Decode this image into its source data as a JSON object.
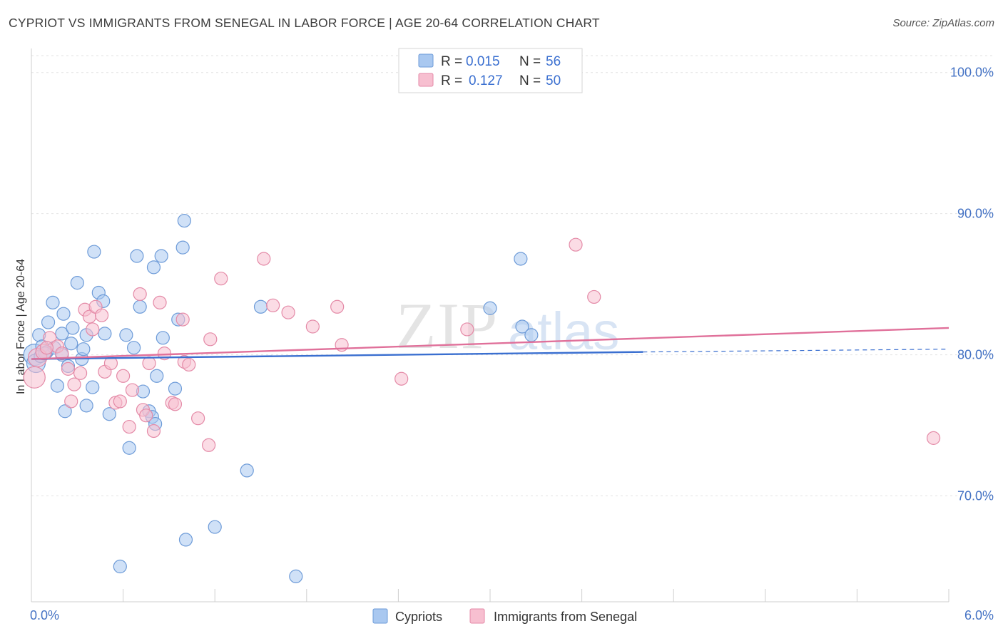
{
  "header": {
    "title": "CYPRIOT VS IMMIGRANTS FROM SENEGAL IN LABOR FORCE | AGE 20-64 CORRELATION CHART",
    "source": "Source: ZipAtlas.com"
  },
  "watermark": {
    "zip": "ZIP",
    "atlas": "atlas"
  },
  "legend": {
    "rows": [
      {
        "r_label": "R =",
        "r_value": "0.015",
        "n_label": "N =",
        "n_value": "56",
        "color": "#a9c8f0",
        "stroke": "#6d9bd8"
      },
      {
        "r_label": "R =",
        "r_value": "0.127",
        "n_label": "N =",
        "n_value": "50",
        "color": "#f7bfd0",
        "stroke": "#e48aa7"
      }
    ]
  },
  "bottom_legend": [
    {
      "label": "Cypriots",
      "color": "#a9c8f0",
      "stroke": "#6d9bd8"
    },
    {
      "label": "Immigrants from Senegal",
      "color": "#f7bfd0",
      "stroke": "#e48aa7"
    }
  ],
  "chart_data": {
    "type": "scatter",
    "ylabel": "In Labor Force | Age 20-64",
    "xlim": [
      0,
      6.0
    ],
    "ylim": [
      62.5,
      101.5
    ],
    "x_tick_labels": [
      {
        "value": 0,
        "label": "0.0%"
      },
      {
        "value": 6.0,
        "label": "6.0%"
      }
    ],
    "y_tick_labels": [
      {
        "value": 100,
        "label": "100.0%"
      },
      {
        "value": 90,
        "label": "90.0%"
      },
      {
        "value": 80,
        "label": "80.0%"
      },
      {
        "value": 70,
        "label": "70.0%"
      }
    ],
    "grid": true,
    "series": [
      {
        "name": "Cypriots",
        "color": "#a9c8f0",
        "stroke": "#6d9bd8",
        "trend": {
          "x": [
            0,
            4.0
          ],
          "y": [
            79.7,
            80.2
          ],
          "dashed_to": 6.0,
          "dashed_y": 80.4,
          "color": "#3a6fd0"
        },
        "points": [
          [
            0.02,
            80.0,
            14
          ],
          [
            0.03,
            79.4,
            12
          ],
          [
            0.05,
            81.4,
            8
          ],
          [
            0.07,
            80.6,
            8
          ],
          [
            0.1,
            80.2,
            8
          ],
          [
            0.11,
            82.3,
            8
          ],
          [
            0.14,
            83.7,
            8
          ],
          [
            0.15,
            80.5,
            8
          ],
          [
            0.17,
            77.8,
            8
          ],
          [
            0.2,
            80.0,
            8
          ],
          [
            0.2,
            81.5,
            8
          ],
          [
            0.21,
            82.9,
            8
          ],
          [
            0.22,
            76.0,
            8
          ],
          [
            0.24,
            79.2,
            8
          ],
          [
            0.26,
            80.8,
            8
          ],
          [
            0.27,
            81.9,
            8
          ],
          [
            0.3,
            85.1,
            8
          ],
          [
            0.33,
            79.7,
            8
          ],
          [
            0.34,
            80.4,
            8
          ],
          [
            0.36,
            76.4,
            8
          ],
          [
            0.36,
            81.4,
            8
          ],
          [
            0.4,
            77.7,
            8
          ],
          [
            0.41,
            87.3,
            8
          ],
          [
            0.44,
            84.4,
            8
          ],
          [
            0.47,
            83.8,
            8
          ],
          [
            0.48,
            81.5,
            8
          ],
          [
            0.51,
            75.8,
            8
          ],
          [
            0.58,
            65.0,
            8
          ],
          [
            0.62,
            81.4,
            8
          ],
          [
            0.64,
            73.4,
            8
          ],
          [
            0.67,
            80.5,
            8
          ],
          [
            0.69,
            87.0,
            8
          ],
          [
            0.71,
            83.4,
            8
          ],
          [
            0.73,
            77.4,
            8
          ],
          [
            0.77,
            76.0,
            8
          ],
          [
            0.79,
            75.6,
            8
          ],
          [
            0.8,
            86.2,
            8
          ],
          [
            0.81,
            75.1,
            8
          ],
          [
            0.82,
            78.5,
            8
          ],
          [
            0.85,
            87.0,
            8
          ],
          [
            0.86,
            81.2,
            8
          ],
          [
            0.94,
            77.6,
            8
          ],
          [
            0.96,
            82.5,
            8
          ],
          [
            0.99,
            87.6,
            8
          ],
          [
            1.0,
            89.5,
            8
          ],
          [
            1.01,
            66.9,
            8
          ],
          [
            1.2,
            67.8,
            8
          ],
          [
            1.41,
            71.8,
            8
          ],
          [
            1.5,
            83.4,
            8
          ],
          [
            1.73,
            64.3,
            8
          ],
          [
            3.0,
            83.3,
            8
          ],
          [
            3.2,
            86.8,
            8
          ],
          [
            3.21,
            82.0,
            8
          ],
          [
            3.27,
            81.4,
            8
          ],
          [
            0.06,
            79.9,
            8
          ],
          [
            0.09,
            80.1,
            8
          ]
        ]
      },
      {
        "name": "Immigrants from Senegal",
        "color": "#f7bfd0",
        "stroke": "#e48aa7",
        "trend": {
          "x": [
            0,
            6.0
          ],
          "y": [
            79.7,
            81.9
          ],
          "color": "#e0709a"
        },
        "points": [
          [
            0.02,
            78.4,
            14
          ],
          [
            0.04,
            79.8,
            12
          ],
          [
            0.08,
            80.2,
            10
          ],
          [
            0.12,
            81.2,
            8
          ],
          [
            0.17,
            80.6,
            8
          ],
          [
            0.2,
            80.1,
            8
          ],
          [
            0.24,
            79.0,
            8
          ],
          [
            0.26,
            76.7,
            8
          ],
          [
            0.28,
            77.9,
            8
          ],
          [
            0.32,
            78.7,
            8
          ],
          [
            0.35,
            83.2,
            8
          ],
          [
            0.38,
            82.7,
            8
          ],
          [
            0.4,
            81.8,
            8
          ],
          [
            0.42,
            83.4,
            8
          ],
          [
            0.46,
            82.8,
            8
          ],
          [
            0.48,
            78.8,
            8
          ],
          [
            0.52,
            79.4,
            8
          ],
          [
            0.55,
            76.6,
            8
          ],
          [
            0.58,
            76.7,
            8
          ],
          [
            0.6,
            78.5,
            8
          ],
          [
            0.64,
            74.9,
            8
          ],
          [
            0.66,
            77.5,
            8
          ],
          [
            0.71,
            84.3,
            8
          ],
          [
            0.73,
            76.1,
            8
          ],
          [
            0.75,
            75.7,
            8
          ],
          [
            0.77,
            79.4,
            8
          ],
          [
            0.8,
            74.6,
            8
          ],
          [
            0.84,
            83.7,
            8
          ],
          [
            0.87,
            80.1,
            8
          ],
          [
            0.92,
            76.6,
            8
          ],
          [
            0.94,
            76.5,
            8
          ],
          [
            0.99,
            82.5,
            8
          ],
          [
            1.0,
            79.5,
            8
          ],
          [
            1.03,
            79.3,
            8
          ],
          [
            1.09,
            75.5,
            8
          ],
          [
            1.16,
            73.6,
            8
          ],
          [
            1.17,
            81.1,
            8
          ],
          [
            1.24,
            85.4,
            8
          ],
          [
            1.52,
            86.8,
            8
          ],
          [
            1.58,
            83.5,
            8
          ],
          [
            1.68,
            83.0,
            8
          ],
          [
            1.84,
            82.0,
            8
          ],
          [
            2.0,
            83.4,
            8
          ],
          [
            2.03,
            80.7,
            8
          ],
          [
            2.42,
            78.3,
            8
          ],
          [
            2.85,
            81.8,
            8
          ],
          [
            3.56,
            87.8,
            8
          ],
          [
            3.68,
            84.1,
            8
          ],
          [
            5.9,
            74.1,
            8
          ],
          [
            0.1,
            80.5,
            8
          ]
        ]
      }
    ]
  }
}
